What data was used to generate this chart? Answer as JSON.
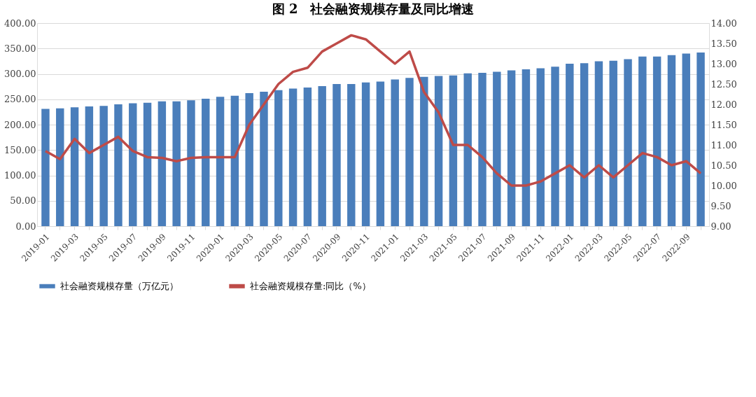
{
  "chart_data": {
    "type": "bar",
    "title": "图 2　社会融资规模存量及同比增速",
    "categories": [
      "2019-01",
      null,
      "2019-03",
      null,
      "2019-05",
      null,
      "2019-07",
      null,
      "2019-09",
      null,
      "2019-11",
      null,
      "2020-01",
      null,
      "2020-03",
      null,
      "2020-05",
      null,
      "2020-07",
      null,
      "2020-09",
      null,
      "2020-11",
      null,
      "2021-01",
      null,
      "2021-03",
      null,
      "2021-05",
      null,
      "2021-07",
      null,
      "2021-09",
      null,
      "2021-11",
      null,
      "2022-01",
      null,
      "2022-03",
      null,
      "2022-05",
      null,
      "2022-07",
      null,
      "2022-09",
      null
    ],
    "series": [
      {
        "name": "社会融资规模存量（万亿元）",
        "color": "#4a7ebb",
        "values": [
          231,
          232,
          234,
          236,
          237,
          240,
          242,
          243,
          246,
          246,
          248,
          251,
          255,
          257,
          262,
          265,
          268,
          271,
          273,
          276,
          280,
          280,
          283,
          285,
          289,
          292,
          294,
          296,
          297,
          301,
          302,
          304,
          307,
          309,
          311,
          314,
          320,
          321,
          325,
          326,
          329,
          334,
          334,
          337,
          340,
          342
        ]
      },
      {
        "name": "社会融资规模存量:同比（%）",
        "type": "line",
        "axis": "y2",
        "color": "#be4b48",
        "values": [
          10.85,
          10.65,
          11.15,
          10.8,
          11.0,
          11.2,
          10.85,
          10.7,
          10.68,
          10.6,
          10.68,
          10.7,
          10.7,
          10.7,
          11.5,
          12.0,
          12.5,
          12.8,
          12.9,
          13.3,
          13.5,
          13.7,
          13.6,
          13.3,
          13.0,
          13.3,
          12.3,
          11.8,
          11.0,
          11.0,
          10.7,
          10.3,
          10.0,
          10.0,
          10.1,
          10.3,
          10.5,
          10.2,
          10.5,
          10.2,
          10.5,
          10.8,
          10.7,
          10.5,
          10.6,
          10.3
        ]
      }
    ],
    "ylim": [
      0,
      400
    ],
    "yticks": [
      {
        "value": 0,
        "label": "0.00"
      },
      {
        "value": 50,
        "label": "50.00"
      },
      {
        "value": 100,
        "label": "100.00"
      },
      {
        "value": 150,
        "label": "150.00"
      },
      {
        "value": 200,
        "label": "200.00"
      },
      {
        "value": 250,
        "label": "250.00"
      },
      {
        "value": 300,
        "label": "300.00"
      },
      {
        "value": 350,
        "label": "350.00"
      },
      {
        "value": 400,
        "label": "400.00"
      }
    ],
    "y2lim": [
      9,
      14
    ],
    "y2ticks": [
      {
        "value": 9,
        "label": "9.00"
      },
      {
        "value": 9.5,
        "label": "9.50"
      },
      {
        "value": 10,
        "label": "10.00"
      },
      {
        "value": 10.5,
        "label": "10.50"
      },
      {
        "value": 11,
        "label": "11.00"
      },
      {
        "value": 11.5,
        "label": "11.50"
      },
      {
        "value": 12,
        "label": "12.00"
      },
      {
        "value": 12.5,
        "label": "12.50"
      },
      {
        "value": 13,
        "label": "13.00"
      },
      {
        "value": 13.5,
        "label": "13.50"
      },
      {
        "value": 14,
        "label": "14.00"
      }
    ],
    "grid": "y",
    "legend": "bottom",
    "marker": "none",
    "line_style": "solid"
  }
}
